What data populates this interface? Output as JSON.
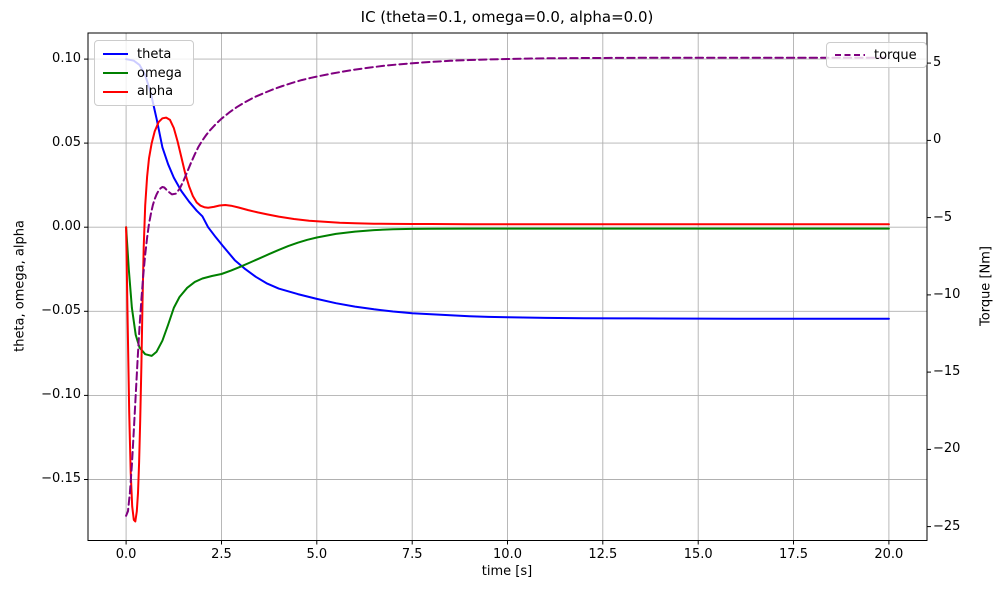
{
  "figure": {
    "title": "IC (theta=0.1, omega=0.0, alpha=0.0)",
    "xlabel": "time [s]",
    "ylabel_left": "theta, omega, alpha",
    "ylabel_right": "Torque [Nm]"
  },
  "chart_data": {
    "type": "line",
    "title": "IC (theta=0.1, omega=0.0, alpha=0.0)",
    "xlabel": "time [s]",
    "ylabel": "theta, omega, alpha",
    "ylabel2": "Torque [Nm]",
    "xlim": [
      -1.0,
      21.0
    ],
    "ylim": [
      -0.1863,
      0.1155
    ],
    "ylim2": [
      -25.9,
      6.95
    ],
    "grid": true,
    "grid_color": "#b0b0b0",
    "spine_color": "#000000",
    "x_ticks": {
      "values": [
        0,
        2.5,
        5,
        7.5,
        10,
        12.5,
        15,
        17.5,
        20
      ],
      "labels": [
        "0.0",
        "2.5",
        "5.0",
        "7.5",
        "10.0",
        "12.5",
        "15.0",
        "17.5",
        "20.0"
      ]
    },
    "y_ticks_left": {
      "values": [
        0.1,
        0.05,
        0.0,
        -0.05,
        -0.1,
        -0.15
      ],
      "labels": [
        "0.10",
        "0.05",
        "0.00",
        "−0.05",
        "−0.10",
        "−0.15"
      ]
    },
    "y_ticks_right": {
      "values": [
        5,
        0,
        -5,
        -10,
        -15,
        -20,
        -25
      ],
      "labels": [
        "5",
        "0",
        "−5",
        "−10",
        "−15",
        "−20",
        "−25"
      ]
    },
    "legend_left": {
      "position": "upper left",
      "entries": [
        {
          "label": "theta",
          "color": "#0000ff",
          "dash": "solid"
        },
        {
          "label": "omega",
          "color": "#008000",
          "dash": "solid"
        },
        {
          "label": "alpha",
          "color": "#ff0000",
          "dash": "solid"
        }
      ]
    },
    "legend_right": {
      "position": "upper right",
      "entries": [
        {
          "label": "torque",
          "color": "#800080",
          "dash": "dashed"
        }
      ]
    },
    "series": [
      {
        "name": "theta",
        "axis": "left",
        "color": "#0000ff",
        "style": "solid",
        "linewidth": 2,
        "points": [
          [
            0,
            0.1
          ],
          [
            0.2,
            0.099
          ],
          [
            0.35,
            0.0965
          ],
          [
            0.5,
            0.0905
          ],
          [
            0.65,
            0.0795
          ],
          [
            0.8,
            0.0645
          ],
          [
            0.95,
            0.0475
          ],
          [
            1.1,
            0.0375
          ],
          [
            1.25,
            0.0295
          ],
          [
            1.45,
            0.0215
          ],
          [
            1.65,
            0.0152
          ],
          [
            1.85,
            0.0098
          ],
          [
            2.0,
            0.0065
          ],
          [
            2.15,
            0.0
          ],
          [
            2.35,
            -0.006
          ],
          [
            2.55,
            -0.0115
          ],
          [
            2.85,
            -0.0196
          ],
          [
            3.1,
            -0.0245
          ],
          [
            3.4,
            -0.0295
          ],
          [
            3.7,
            -0.0335
          ],
          [
            4.0,
            -0.0365
          ],
          [
            4.5,
            -0.0398
          ],
          [
            5.0,
            -0.0426
          ],
          [
            5.5,
            -0.0452
          ],
          [
            6.0,
            -0.0472
          ],
          [
            6.5,
            -0.0488
          ],
          [
            7.0,
            -0.0501
          ],
          [
            7.5,
            -0.0511
          ],
          [
            8.0,
            -0.0518
          ],
          [
            8.5,
            -0.0524
          ],
          [
            9.0,
            -0.0529
          ],
          [
            9.5,
            -0.0533
          ],
          [
            10,
            -0.0535
          ],
          [
            11,
            -0.0539
          ],
          [
            12,
            -0.0541
          ],
          [
            13,
            -0.0542
          ],
          [
            14,
            -0.0543
          ],
          [
            16,
            -0.0544
          ],
          [
            18,
            -0.0544
          ],
          [
            20,
            -0.0544
          ]
        ]
      },
      {
        "name": "omega",
        "axis": "left",
        "color": "#008000",
        "style": "solid",
        "linewidth": 2,
        "points": [
          [
            0,
            0.0
          ],
          [
            0.07,
            -0.025
          ],
          [
            0.15,
            -0.048
          ],
          [
            0.25,
            -0.064
          ],
          [
            0.35,
            -0.0715
          ],
          [
            0.5,
            -0.0755
          ],
          [
            0.67,
            -0.0765
          ],
          [
            0.8,
            -0.074
          ],
          [
            0.95,
            -0.0675
          ],
          [
            1.1,
            -0.058
          ],
          [
            1.25,
            -0.048
          ],
          [
            1.4,
            -0.0415
          ],
          [
            1.6,
            -0.036
          ],
          [
            1.8,
            -0.0325
          ],
          [
            2.0,
            -0.0305
          ],
          [
            2.25,
            -0.029
          ],
          [
            2.5,
            -0.0278
          ],
          [
            2.75,
            -0.0258
          ],
          [
            3.0,
            -0.0235
          ],
          [
            3.25,
            -0.021
          ],
          [
            3.5,
            -0.0185
          ],
          [
            3.75,
            -0.016
          ],
          [
            4.0,
            -0.0135
          ],
          [
            4.25,
            -0.0112
          ],
          [
            4.5,
            -0.0092
          ],
          [
            4.75,
            -0.0075
          ],
          [
            5.0,
            -0.0061
          ],
          [
            5.5,
            -0.004
          ],
          [
            6.0,
            -0.0026
          ],
          [
            6.5,
            -0.0017
          ],
          [
            7.0,
            -0.0012
          ],
          [
            7.5,
            -0.001
          ],
          [
            8.0,
            -0.0009
          ],
          [
            9.0,
            -0.0008
          ],
          [
            10,
            -0.0008
          ],
          [
            12,
            -0.0008
          ],
          [
            15,
            -0.0008
          ],
          [
            20,
            -0.0008
          ]
        ]
      },
      {
        "name": "alpha",
        "axis": "left",
        "color": "#ff0000",
        "style": "solid",
        "linewidth": 2,
        "points": [
          [
            0,
            0.0
          ],
          [
            0.04,
            -0.058
          ],
          [
            0.08,
            -0.11
          ],
          [
            0.12,
            -0.146
          ],
          [
            0.16,
            -0.166
          ],
          [
            0.2,
            -0.174
          ],
          [
            0.24,
            -0.175
          ],
          [
            0.28,
            -0.169
          ],
          [
            0.31,
            -0.158
          ],
          [
            0.34,
            -0.14
          ],
          [
            0.37,
            -0.115
          ],
          [
            0.4,
            -0.082
          ],
          [
            0.43,
            -0.045
          ],
          [
            0.46,
            -0.012
          ],
          [
            0.5,
            0.013
          ],
          [
            0.55,
            0.03
          ],
          [
            0.6,
            0.041
          ],
          [
            0.67,
            0.05
          ],
          [
            0.75,
            0.057
          ],
          [
            0.85,
            0.0625
          ],
          [
            0.95,
            0.0648
          ],
          [
            1.05,
            0.0652
          ],
          [
            1.15,
            0.0638
          ],
          [
            1.25,
            0.059
          ],
          [
            1.35,
            0.051
          ],
          [
            1.45,
            0.0415
          ],
          [
            1.55,
            0.032
          ],
          [
            1.65,
            0.0243
          ],
          [
            1.75,
            0.0185
          ],
          [
            1.85,
            0.0147
          ],
          [
            1.95,
            0.0128
          ],
          [
            2.05,
            0.0119
          ],
          [
            2.15,
            0.0116
          ],
          [
            2.3,
            0.0121
          ],
          [
            2.45,
            0.0129
          ],
          [
            2.6,
            0.0132
          ],
          [
            2.75,
            0.0128
          ],
          [
            2.95,
            0.0117
          ],
          [
            3.2,
            0.0102
          ],
          [
            3.45,
            0.0088
          ],
          [
            3.7,
            0.0076
          ],
          [
            4.0,
            0.0063
          ],
          [
            4.4,
            0.0049
          ],
          [
            4.8,
            0.0038
          ],
          [
            5.2,
            0.0032
          ],
          [
            5.6,
            0.0027
          ],
          [
            6.0,
            0.0024
          ],
          [
            6.5,
            0.0021
          ],
          [
            7.0,
            0.002
          ],
          [
            7.5,
            0.0019
          ],
          [
            8.0,
            0.0019
          ],
          [
            9.0,
            0.0018
          ],
          [
            10,
            0.0018
          ],
          [
            12,
            0.0018
          ],
          [
            15,
            0.0018
          ],
          [
            20,
            0.0018
          ]
        ]
      },
      {
        "name": "torque",
        "axis": "right",
        "color": "#800080",
        "style": "dashed",
        "linewidth": 2,
        "points": [
          [
            0,
            -24.3
          ],
          [
            0.05,
            -24.0
          ],
          [
            0.1,
            -22.8
          ],
          [
            0.15,
            -21.0
          ],
          [
            0.2,
            -18.8
          ],
          [
            0.25,
            -16.5
          ],
          [
            0.3,
            -14.2
          ],
          [
            0.35,
            -12.1
          ],
          [
            0.4,
            -10.3
          ],
          [
            0.45,
            -8.7
          ],
          [
            0.5,
            -7.4
          ],
          [
            0.55,
            -6.3
          ],
          [
            0.6,
            -5.4
          ],
          [
            0.65,
            -4.75
          ],
          [
            0.7,
            -4.2
          ],
          [
            0.75,
            -3.8
          ],
          [
            0.8,
            -3.5
          ],
          [
            0.85,
            -3.25
          ],
          [
            0.9,
            -3.1
          ],
          [
            0.95,
            -3.02
          ],
          [
            1.0,
            -3.05
          ],
          [
            1.1,
            -3.3
          ],
          [
            1.2,
            -3.5
          ],
          [
            1.3,
            -3.45
          ],
          [
            1.4,
            -3.15
          ],
          [
            1.5,
            -2.65
          ],
          [
            1.6,
            -2.05
          ],
          [
            1.7,
            -1.45
          ],
          [
            1.8,
            -0.9
          ],
          [
            1.9,
            -0.4
          ],
          [
            2.0,
            0.0
          ],
          [
            2.1,
            0.35
          ],
          [
            2.2,
            0.65
          ],
          [
            2.35,
            1.05
          ],
          [
            2.5,
            1.4
          ],
          [
            2.7,
            1.8
          ],
          [
            2.9,
            2.15
          ],
          [
            3.1,
            2.45
          ],
          [
            3.35,
            2.78
          ],
          [
            3.6,
            3.05
          ],
          [
            3.85,
            3.3
          ],
          [
            4.1,
            3.52
          ],
          [
            4.35,
            3.72
          ],
          [
            4.6,
            3.9
          ],
          [
            4.85,
            4.05
          ],
          [
            5.1,
            4.18
          ],
          [
            5.4,
            4.33
          ],
          [
            5.7,
            4.46
          ],
          [
            6.0,
            4.58
          ],
          [
            6.4,
            4.72
          ],
          [
            6.8,
            4.84
          ],
          [
            7.2,
            4.93
          ],
          [
            7.6,
            5.01
          ],
          [
            8.0,
            5.08
          ],
          [
            8.5,
            5.15
          ],
          [
            9.0,
            5.2
          ],
          [
            9.5,
            5.24
          ],
          [
            10,
            5.27
          ],
          [
            10.5,
            5.29
          ],
          [
            11,
            5.31
          ],
          [
            11.5,
            5.32
          ],
          [
            12,
            5.33
          ],
          [
            13,
            5.34
          ],
          [
            14,
            5.35
          ],
          [
            15,
            5.35
          ],
          [
            16,
            5.35
          ],
          [
            17,
            5.35
          ],
          [
            18,
            5.35
          ],
          [
            19,
            5.35
          ],
          [
            20,
            5.35
          ]
        ]
      }
    ]
  }
}
